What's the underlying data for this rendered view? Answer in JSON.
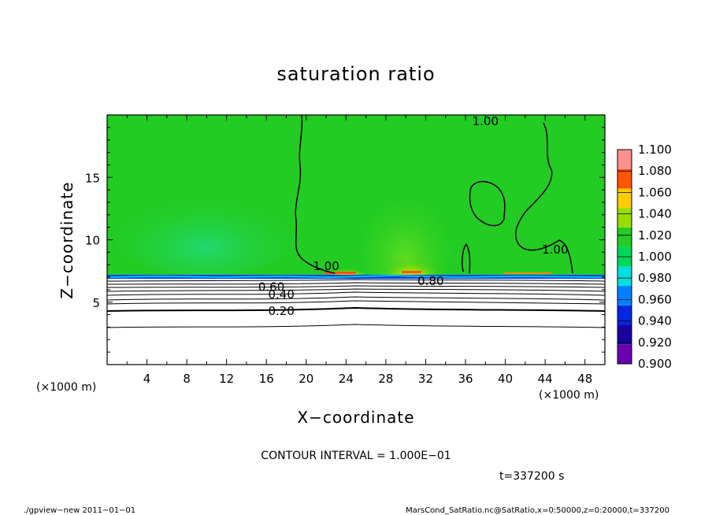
{
  "chart_data": {
    "type": "heatmap",
    "title": "saturation ratio",
    "xlabel": "X−coordinate",
    "ylabel": "Z−coordinate",
    "x_unit_left": "(×1000 m)",
    "x_unit_right": "(×1000 m)",
    "xlim": [
      0,
      50
    ],
    "ylim": [
      0,
      20
    ],
    "x_ticks": [
      4,
      8,
      12,
      16,
      20,
      24,
      28,
      32,
      36,
      40,
      44,
      48
    ],
    "y_ticks": [
      5,
      10,
      15
    ],
    "colorbar": {
      "levels": [
        "0.900",
        "0.920",
        "0.940",
        "0.960",
        "0.980",
        "1.000",
        "1.020",
        "1.040",
        "1.060",
        "1.080",
        "1.100"
      ],
      "colors": [
        "#6a00b0",
        "#1a00a0",
        "#0028e0",
        "#0080ff",
        "#00e0e0",
        "#00d85a",
        "#22cc22",
        "#99dd00",
        "#ffcc00",
        "#ff5500",
        "#ff9090"
      ]
    },
    "field": {
      "lower_boundary_z": 7.2,
      "upper_region_value": 1.0,
      "upper_region_color": "#22cc22"
    },
    "contour_labels": [
      {
        "text": "1.00",
        "x": 22,
        "z": 7.9
      },
      {
        "text": "0.80",
        "x": 32.5,
        "z": 6.7
      },
      {
        "text": "0.60",
        "x": 16.5,
        "z": 6.2
      },
      {
        "text": "0.40",
        "x": 17.5,
        "z": 5.6
      },
      {
        "text": "0.20",
        "x": 17.5,
        "z": 4.3
      },
      {
        "text": "1.00",
        "x": 45,
        "z": 9.2
      },
      {
        "text": "1.00",
        "x": 38,
        "z": 19.5
      }
    ],
    "contour_interval_text": "CONTOUR INTERVAL = 1.000E−01",
    "time_text": "t=337200 s"
  },
  "footer": {
    "left": "./gpview−new   2011−01−01",
    "right": "MarsCond_SatRatio.nc@SatRatio,x=0:50000,z=0:20000,t=337200"
  }
}
